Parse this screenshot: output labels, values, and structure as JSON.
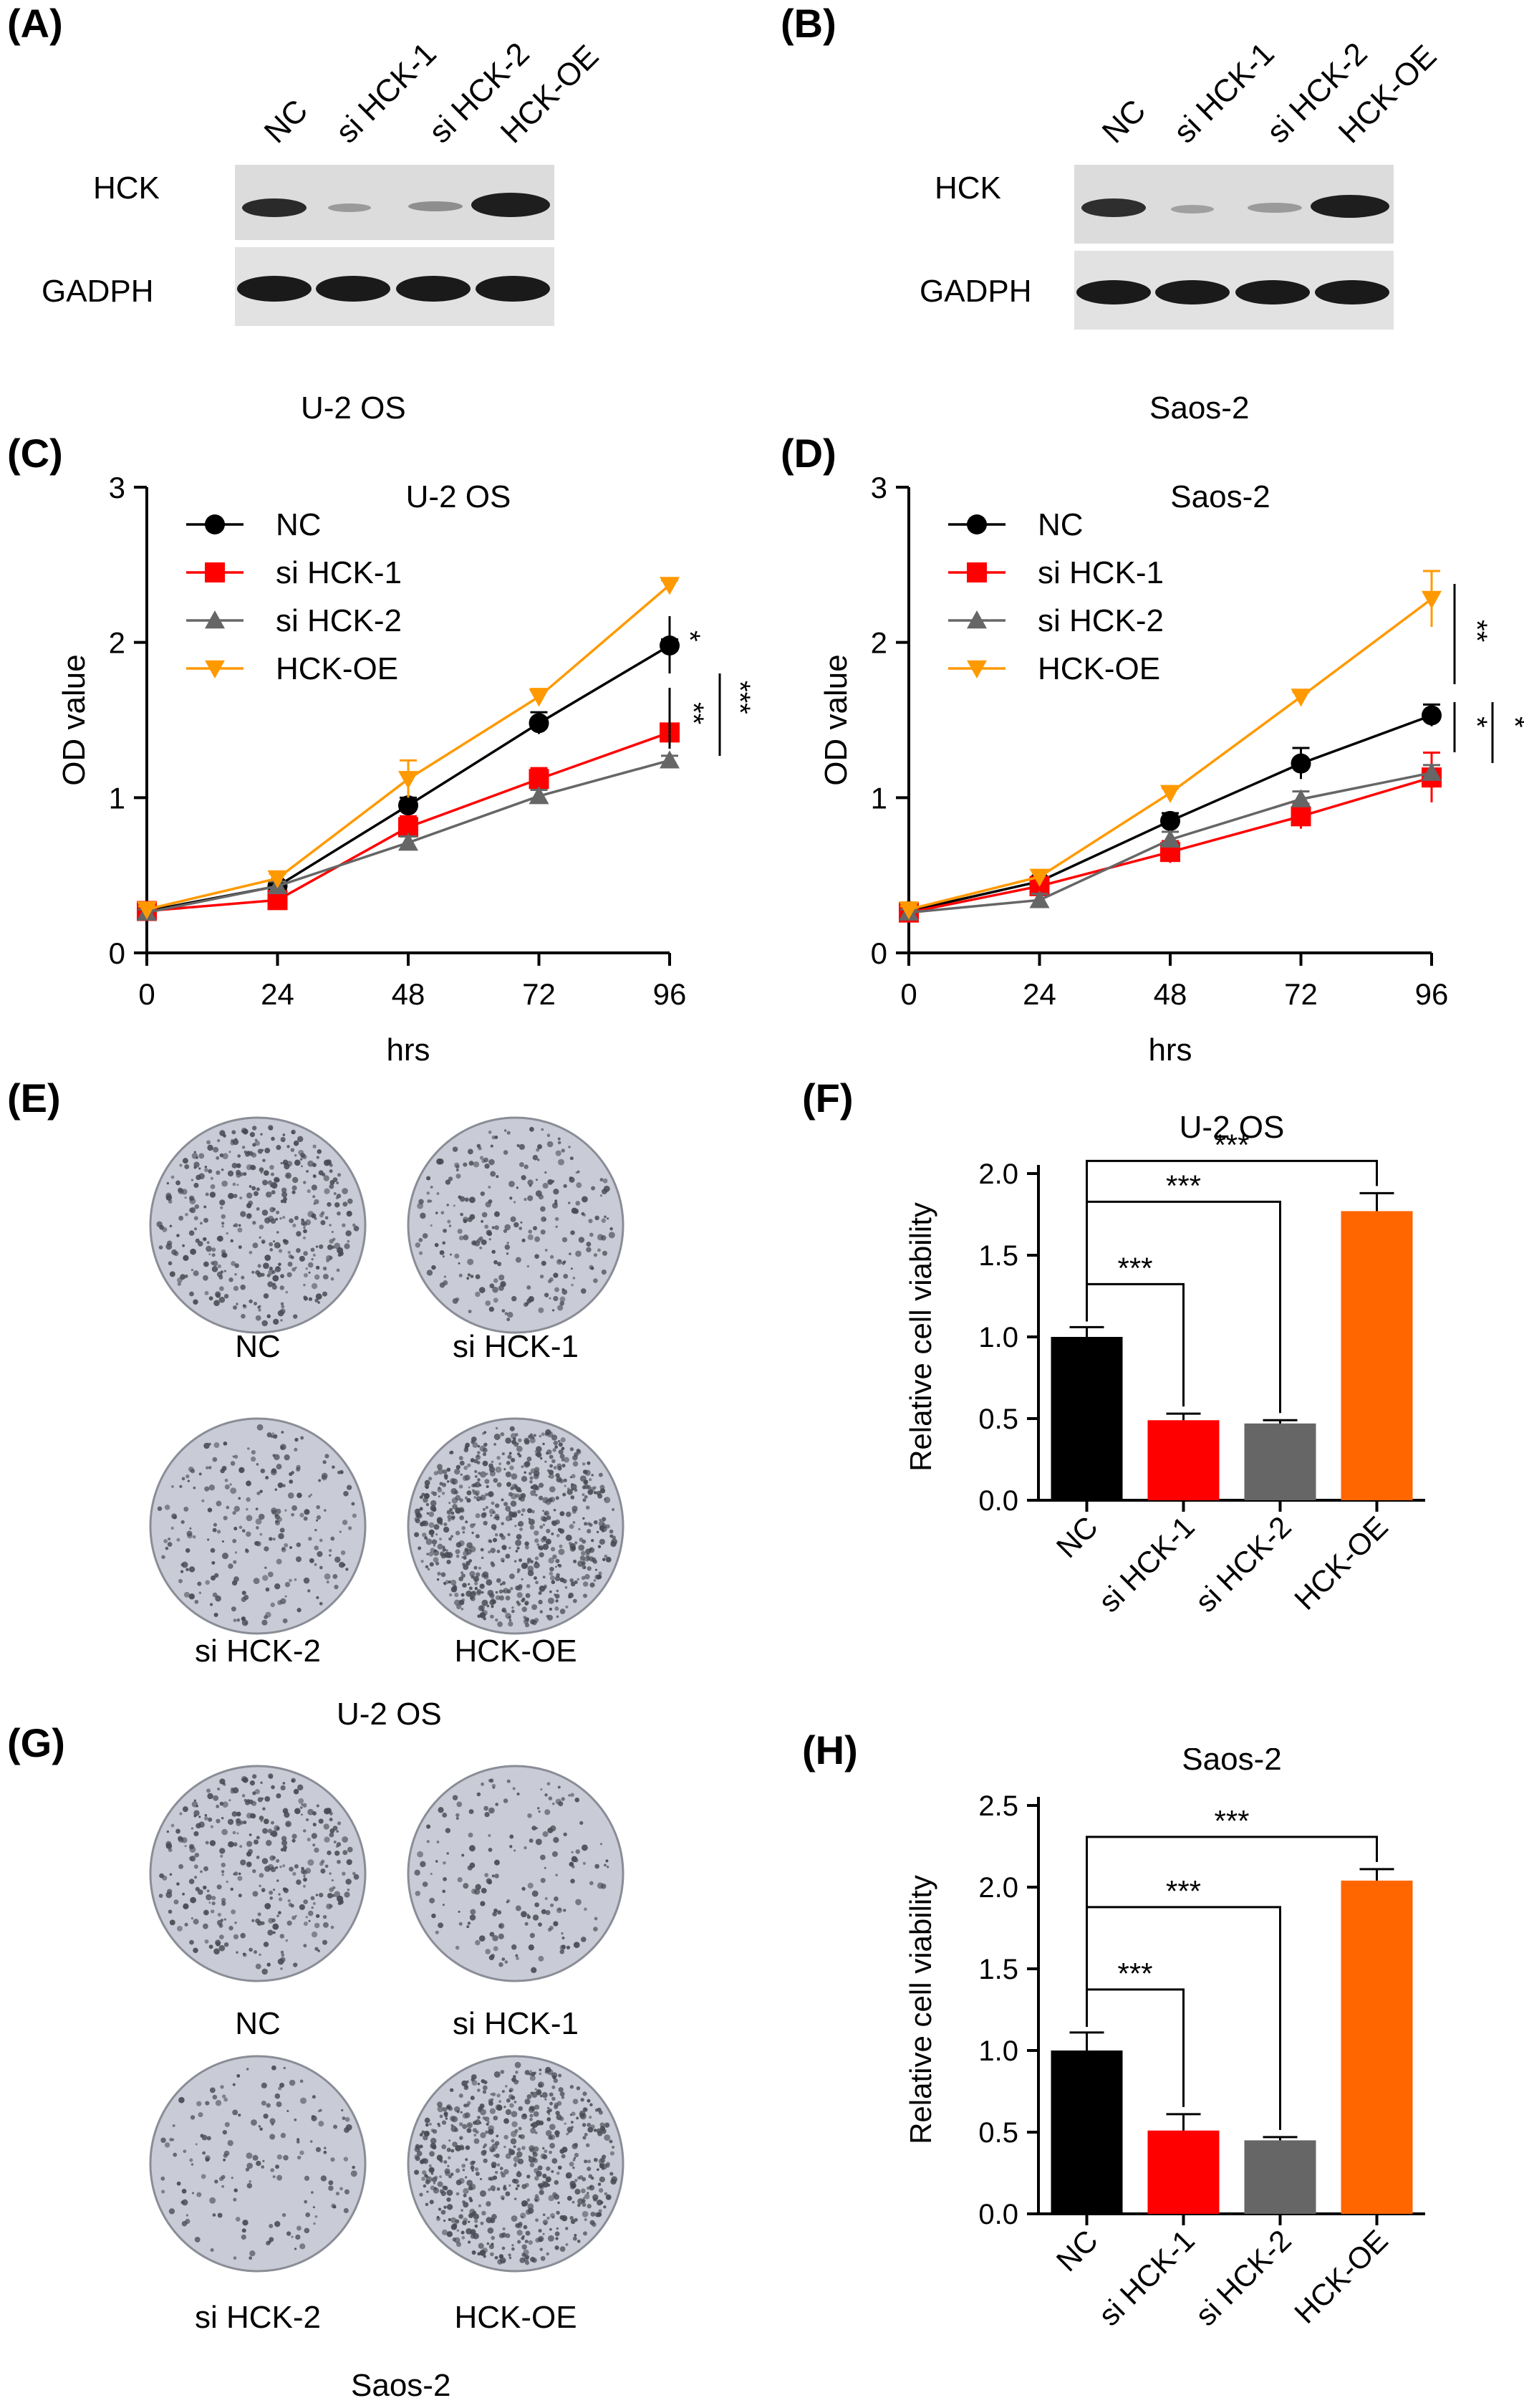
{
  "panels": {
    "A": {
      "letter": "(A)",
      "cell_line": "U-2 OS",
      "lanes": [
        "NC",
        "si HCK-1",
        "si HCK-2",
        "HCK-OE"
      ],
      "rows": [
        "HCK",
        "GADPH"
      ]
    },
    "B": {
      "letter": "(B)",
      "cell_line": "Saos-2",
      "lanes": [
        "NC",
        "si HCK-1",
        "si HCK-2",
        "HCK-OE"
      ],
      "rows": [
        "HCK",
        "GADPH"
      ]
    },
    "E": {
      "letter": "(E)",
      "cell_line": "U-2 OS",
      "plates": [
        "NC",
        "si HCK-1",
        "si HCK-2",
        "HCK-OE"
      ]
    },
    "G": {
      "letter": "(G)",
      "cell_line": "Saos-2",
      "plates": [
        "NC",
        "si HCK-1",
        "si HCK-2",
        "HCK-OE"
      ]
    }
  },
  "colors": {
    "NC": "#000000",
    "si HCK-1": "#ff0000",
    "si HCK-2": "#666666",
    "HCK-OE": "#ff9900",
    "bar_HCK-OE": "#ff6600"
  },
  "chart_data": [
    {
      "id": "C",
      "letter": "(C)",
      "type": "line",
      "title": "U-2 OS",
      "xlabel": "hrs",
      "ylabel": "OD value",
      "x": [
        0,
        24,
        48,
        72,
        96
      ],
      "xlim": [
        0,
        96
      ],
      "ylim": [
        0,
        3
      ],
      "xticks": [
        "0",
        "24",
        "48",
        "72",
        "96"
      ],
      "yticks": [
        "0",
        "1",
        "2",
        "3"
      ],
      "series": [
        {
          "name": "NC",
          "marker": "circle",
          "values": [
            0.27,
            0.43,
            0.95,
            1.48,
            1.98
          ],
          "err": [
            0.02,
            0.03,
            0.05,
            0.07,
            0.04
          ]
        },
        {
          "name": "si HCK-1",
          "marker": "square",
          "values": [
            0.27,
            0.34,
            0.81,
            1.12,
            1.42
          ],
          "err": [
            0.02,
            0.03,
            0.07,
            0.07,
            0.05
          ]
        },
        {
          "name": "si HCK-2",
          "marker": "triangle-up",
          "values": [
            0.26,
            0.43,
            0.71,
            1.01,
            1.24
          ],
          "err": [
            0.02,
            0.03,
            0.04,
            0.04,
            0.03
          ]
        },
        {
          "name": "HCK-OE",
          "marker": "triangle-down",
          "values": [
            0.28,
            0.48,
            1.12,
            1.65,
            2.37
          ],
          "err": [
            0.02,
            0.03,
            0.12,
            0.05,
            0.03
          ]
        }
      ],
      "legend": "top-left",
      "annotations": [
        "*",
        "**",
        "***"
      ]
    },
    {
      "id": "D",
      "letter": "(D)",
      "type": "line",
      "title": "Saos-2",
      "xlabel": "hrs",
      "ylabel": "OD value",
      "x": [
        0,
        24,
        48,
        72,
        96
      ],
      "xlim": [
        0,
        96
      ],
      "ylim": [
        0,
        3
      ],
      "xticks": [
        "0",
        "24",
        "48",
        "72",
        "96"
      ],
      "yticks": [
        "0",
        "1",
        "2",
        "3"
      ],
      "series": [
        {
          "name": "NC",
          "marker": "circle",
          "values": [
            0.27,
            0.46,
            0.85,
            1.22,
            1.53
          ],
          "err": [
            0.02,
            0.03,
            0.05,
            0.1,
            0.07
          ]
        },
        {
          "name": "si HCK-1",
          "marker": "square",
          "values": [
            0.26,
            0.43,
            0.65,
            0.88,
            1.13
          ],
          "err": [
            0.02,
            0.05,
            0.07,
            0.08,
            0.16
          ]
        },
        {
          "name": "si HCK-2",
          "marker": "triangle-up",
          "values": [
            0.26,
            0.34,
            0.73,
            0.99,
            1.16
          ],
          "err": [
            0.02,
            0.04,
            0.05,
            0.05,
            0.05
          ]
        },
        {
          "name": "HCK-OE",
          "marker": "triangle-down",
          "values": [
            0.28,
            0.49,
            1.03,
            1.65,
            2.28
          ],
          "err": [
            0.02,
            0.04,
            0.03,
            0.03,
            0.18
          ]
        }
      ],
      "legend": "top-left",
      "annotations": [
        "**",
        "*",
        "*"
      ]
    },
    {
      "id": "F",
      "letter": "(F)",
      "type": "bar",
      "title": "U-2 OS",
      "xlabel": "",
      "ylabel": "Relative cell viability",
      "categories": [
        "NC",
        "si HCK-1",
        "si HCK-2",
        "HCK-OE"
      ],
      "values": [
        1.0,
        0.49,
        0.47,
        1.77
      ],
      "err": [
        0.06,
        0.04,
        0.02,
        0.11
      ],
      "ylim": [
        0,
        2.0
      ],
      "yticks": [
        "0.0",
        "0.5",
        "1.0",
        "1.5",
        "2.0"
      ],
      "comparisons": [
        "***",
        "***",
        "***"
      ]
    },
    {
      "id": "H",
      "letter": "(H)",
      "type": "bar",
      "title": "Saos-2",
      "xlabel": "",
      "ylabel": "Relative cell viability",
      "categories": [
        "NC",
        "si HCK-1",
        "si HCK-2",
        "HCK-OE"
      ],
      "values": [
        1.0,
        0.51,
        0.45,
        2.04
      ],
      "err": [
        0.11,
        0.1,
        0.02,
        0.07
      ],
      "ylim": [
        0,
        2.5
      ],
      "yticks": [
        "0.0",
        "0.5",
        "1.0",
        "1.5",
        "2.0",
        "2.5"
      ],
      "comparisons": [
        "***",
        "***",
        "***"
      ]
    }
  ]
}
